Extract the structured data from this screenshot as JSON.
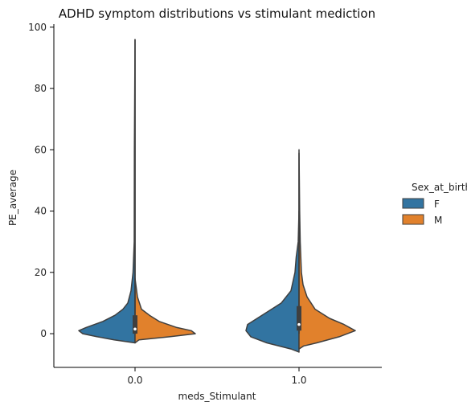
{
  "chart_data": {
    "type": "violin",
    "title": "ADHD symptom distributions vs stimulant mediction",
    "xlabel": "meds_Stimulant",
    "ylabel": "PE_average",
    "categories": [
      "0.0",
      "1.0"
    ],
    "ylim": [
      -11,
      101
    ],
    "yticks": [
      0,
      20,
      40,
      60,
      80,
      100
    ],
    "legend": {
      "title": "Sex_at_birth",
      "position": "right",
      "entries": [
        {
          "label": "F",
          "color": "#3274a1"
        },
        {
          "label": "M",
          "color": "#e1812c"
        }
      ]
    },
    "split": true,
    "series": [
      {
        "name": "F",
        "side": "left",
        "color": "#3274a1",
        "violins": [
          {
            "category": "0.0",
            "profile": [
              [
                -3,
                0.0
              ],
              [
                -2,
                0.26
              ],
              [
                -1,
                0.47
              ],
              [
                0,
                0.65
              ],
              [
                1,
                0.7
              ],
              [
                2,
                0.61
              ],
              [
                4,
                0.4
              ],
              [
                6,
                0.25
              ],
              [
                8,
                0.15
              ],
              [
                10,
                0.09
              ],
              [
                14,
                0.05
              ],
              [
                20,
                0.025
              ],
              [
                30,
                0.01
              ],
              [
                60,
                0.008
              ],
              [
                96,
                0.0
              ]
            ]
          },
          {
            "category": "1.0",
            "profile": [
              [
                -6,
                0.0
              ],
              [
                -5,
                0.1
              ],
              [
                -3,
                0.4
              ],
              [
                -1,
                0.6
              ],
              [
                1,
                0.66
              ],
              [
                3,
                0.64
              ],
              [
                5,
                0.52
              ],
              [
                7,
                0.4
              ],
              [
                10,
                0.22
              ],
              [
                14,
                0.1
              ],
              [
                20,
                0.05
              ],
              [
                25,
                0.035
              ],
              [
                30,
                0.01
              ],
              [
                40,
                0.0
              ]
            ]
          }
        ]
      },
      {
        "name": "M",
        "side": "right",
        "color": "#e1812c",
        "violins": [
          {
            "category": "0.0",
            "profile": [
              [
                -3,
                0.0
              ],
              [
                -2,
                0.05
              ],
              [
                -1,
                0.43
              ],
              [
                0,
                0.75
              ],
              [
                1,
                0.7
              ],
              [
                2,
                0.52
              ],
              [
                4,
                0.3
              ],
              [
                6,
                0.18
              ],
              [
                8,
                0.08
              ],
              [
                12,
                0.03
              ],
              [
                18,
                0.0
              ]
            ]
          },
          {
            "category": "1.0",
            "profile": [
              [
                -5,
                0.0
              ],
              [
                -4,
                0.06
              ],
              [
                -3,
                0.22
              ],
              [
                -1,
                0.5
              ],
              [
                1,
                0.7
              ],
              [
                3,
                0.56
              ],
              [
                5,
                0.38
              ],
              [
                8,
                0.2
              ],
              [
                12,
                0.1
              ],
              [
                16,
                0.05
              ],
              [
                20,
                0.03
              ],
              [
                30,
                0.015
              ],
              [
                40,
                0.008
              ],
              [
                50,
                0.004
              ],
              [
                60,
                0.0
              ]
            ]
          }
        ]
      }
    ],
    "box": [
      {
        "category": "0.0",
        "whisker": [
          0,
          96
        ],
        "q1": 0,
        "q3": 6,
        "median": 1.5
      },
      {
        "category": "1.0",
        "whisker": [
          0,
          59
        ],
        "q1": 1,
        "q3": 9,
        "median": 3
      }
    ]
  }
}
